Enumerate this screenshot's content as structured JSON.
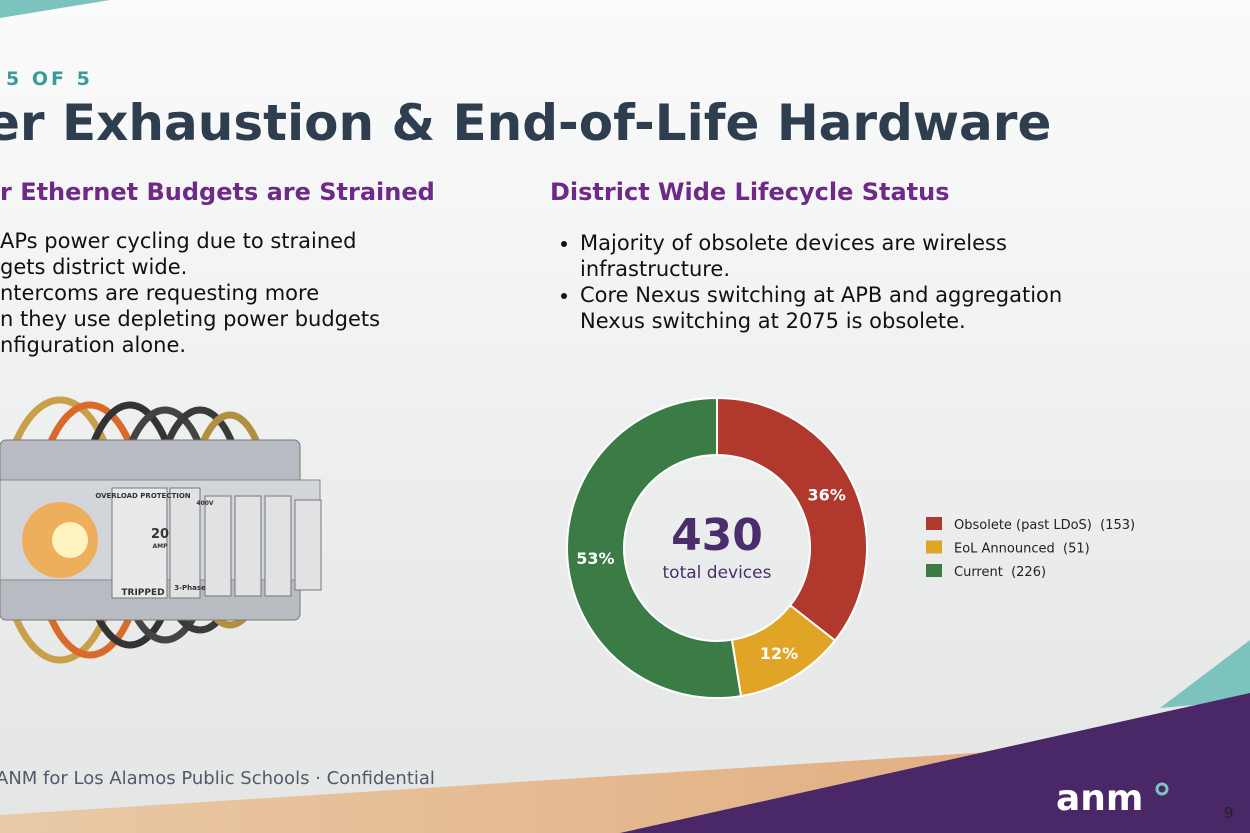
{
  "header": {
    "eyebrow": "5 OF 5",
    "title": "er Exhaustion & End-of-Life Hardware"
  },
  "left": {
    "heading": "r Ethernet Budgets are Strained",
    "lines": [
      "APs power cycling due to strained",
      "gets district wide.",
      "ntercoms are requesting more",
      "n they use depleting power budgets",
      "nfiguration alone."
    ],
    "image_labels": [
      "OVERLOAD PROTECTION",
      "20",
      "AMP",
      "TRIPPED",
      "400V",
      "3-Phase"
    ]
  },
  "right": {
    "heading": "District Wide Lifecycle Status",
    "bullets": [
      "Majority of obsolete devices are wireless infrastructure.",
      "Core Nexus switching at APB and aggregation Nexus switching at 2075 is obsolete."
    ]
  },
  "chart_data": {
    "type": "pie",
    "categories": [
      "Obsolete (past LDoS)  (153)",
      "EoL Announced  (51)",
      "Current  (226)"
    ],
    "values": [
      153,
      51,
      226
    ],
    "value_labels": [
      "36%",
      "12%",
      "53%"
    ],
    "colors": [
      "#b0382c",
      "#e0a527",
      "#3b7c46"
    ],
    "center_value": 430,
    "center_label": "total devices"
  },
  "footer": {
    "confidential": "ANM for Los Alamos Public Schools · Confidential",
    "logo": "anm",
    "page": 9
  }
}
